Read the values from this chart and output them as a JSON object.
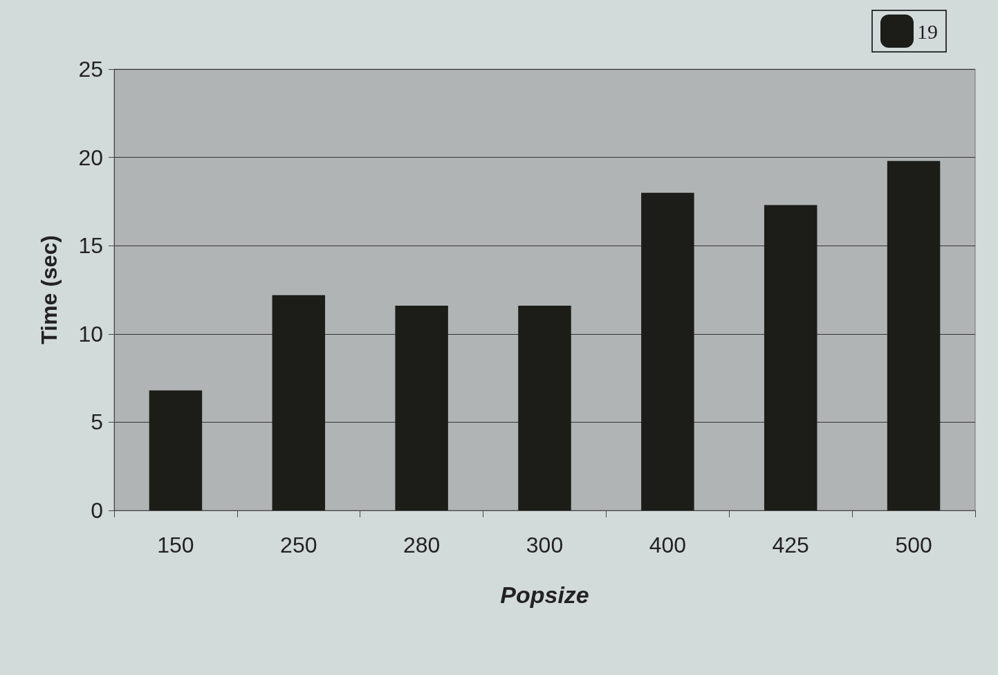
{
  "chart_data": {
    "type": "bar",
    "xlabel": "Popsize",
    "ylabel": "Time (sec)",
    "categories": [
      "150",
      "250",
      "280",
      "300",
      "400",
      "425",
      "500"
    ],
    "series": [
      {
        "name": "19",
        "color": "#1c1d19",
        "values": [
          6.8,
          12.2,
          11.6,
          11.6,
          18.0,
          17.3,
          19.8
        ]
      }
    ],
    "ylim": [
      0,
      25
    ],
    "yticks": [
      0,
      5,
      10,
      15,
      20,
      25
    ],
    "grid": "y",
    "legend": "top right"
  }
}
